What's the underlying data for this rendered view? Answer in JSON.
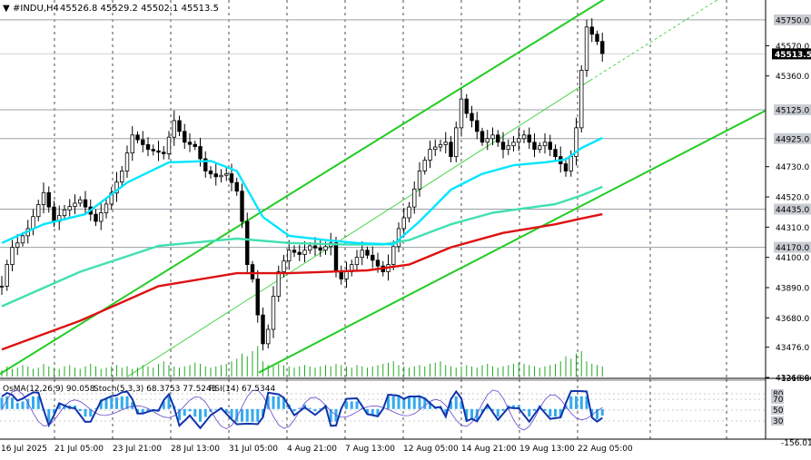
{
  "header": {
    "symbol_label": "#INDU,H4",
    "ohlc": "45526.8 45529.2 45502.1 45513.5"
  },
  "indicator_header": {
    "osma": "OsMA(12,26,9) 90.058",
    "stoch": "Stoch(5,3,3) 68.3753 77.5243",
    "rsi": "RSI(14) 67.5344"
  },
  "price_axis": {
    "ticks": [
      "45570.0",
      "45360.0",
      "44730.0",
      "44520.0",
      "44310.0",
      "44100.0",
      "43890.0",
      "43680.0",
      "43476.0",
      "43266.0"
    ],
    "marked_levels": [
      "45750.0",
      "45125.0",
      "44925.0",
      "44435.0",
      "44170.0"
    ],
    "current_price": "45513.5"
  },
  "indicator_axis": {
    "ticks": [
      "131.886",
      "80",
      "70",
      "50",
      "30",
      "-156.013"
    ]
  },
  "time_axis": {
    "labels": [
      "16 Jul 2025",
      "21 Jul 05:00",
      "23 Jul 21:00",
      "28 Jul 13:00",
      "31 Jul 05:00",
      "4 Aug 21:00",
      "7 Aug 13:00",
      "12 Aug 05:00",
      "14 Aug 21:00",
      "19 Aug 13:00",
      "22 Aug 05:00"
    ]
  },
  "colors": {
    "background": "#ffffff",
    "candles": "#000000",
    "ema_fast": "#00e5ff",
    "ema_mid": "#40e0b0",
    "ema_slow": "#dd1111",
    "channel": "#22cc22",
    "levels": "#9aa0a8",
    "osma_bars": "#33aaee",
    "stoch_main": "#1133aa",
    "rsi_line": "#6644cc",
    "axis_highlight": "#000000"
  },
  "chart_data": {
    "type": "candlestick",
    "symbol": "#INDU",
    "timeframe": "H4",
    "last_close": 45513.5,
    "y_range": [
      43266,
      45850
    ],
    "horizontal_levels": [
      45750,
      45125,
      44925,
      44435,
      44170
    ],
    "price_path": [
      [
        0,
        43900
      ],
      [
        1,
        44050
      ],
      [
        2,
        44170
      ],
      [
        3,
        44200
      ],
      [
        5,
        44300
      ],
      [
        8,
        44550
      ],
      [
        10,
        44350
      ],
      [
        12,
        44430
      ],
      [
        15,
        44500
      ],
      [
        18,
        44350
      ],
      [
        20,
        44470
      ],
      [
        23,
        44700
      ],
      [
        25,
        44950
      ],
      [
        28,
        44850
      ],
      [
        31,
        44820
      ],
      [
        33,
        45050
      ],
      [
        35,
        44900
      ],
      [
        37,
        44870
      ],
      [
        39,
        44700
      ],
      [
        41,
        44660
      ],
      [
        43,
        44680
      ],
      [
        45,
        44560
      ],
      [
        46,
        44350
      ],
      [
        47,
        44050
      ],
      [
        48,
        43950
      ],
      [
        49,
        43700
      ],
      [
        50,
        43500
      ],
      [
        51,
        43600
      ],
      [
        52,
        43830
      ],
      [
        53,
        44000
      ],
      [
        55,
        44150
      ],
      [
        57,
        44120
      ],
      [
        59,
        44180
      ],
      [
        61,
        44150
      ],
      [
        63,
        44200
      ],
      [
        64,
        44000
      ],
      [
        65,
        43950
      ],
      [
        67,
        44050
      ],
      [
        69,
        44150
      ],
      [
        71,
        44080
      ],
      [
        73,
        44000
      ],
      [
        74,
        44050
      ],
      [
        76,
        44300
      ],
      [
        78,
        44450
      ],
      [
        80,
        44700
      ],
      [
        82,
        44850
      ],
      [
        85,
        44900
      ],
      [
        86,
        44800
      ],
      [
        87,
        45000
      ],
      [
        88,
        45200
      ],
      [
        89,
        45100
      ],
      [
        90,
        45050
      ],
      [
        92,
        44900
      ],
      [
        94,
        44950
      ],
      [
        96,
        44850
      ],
      [
        98,
        44900
      ],
      [
        100,
        44950
      ],
      [
        102,
        44850
      ],
      [
        104,
        44900
      ],
      [
        106,
        44800
      ],
      [
        108,
        44700
      ],
      [
        109,
        44800
      ],
      [
        110,
        45000
      ],
      [
        111,
        45400
      ],
      [
        112,
        45700
      ],
      [
        113,
        45650
      ],
      [
        114,
        45600
      ],
      [
        115,
        45513
      ]
    ],
    "ema_fast": [
      [
        0,
        44200
      ],
      [
        8,
        44330
      ],
      [
        16,
        44400
      ],
      [
        24,
        44620
      ],
      [
        32,
        44760
      ],
      [
        40,
        44770
      ],
      [
        45,
        44700
      ],
      [
        50,
        44380
      ],
      [
        55,
        44250
      ],
      [
        62,
        44220
      ],
      [
        68,
        44200
      ],
      [
        75,
        44190
      ],
      [
        80,
        44350
      ],
      [
        86,
        44570
      ],
      [
        92,
        44680
      ],
      [
        98,
        44740
      ],
      [
        104,
        44760
      ],
      [
        108,
        44780
      ],
      [
        111,
        44860
      ],
      [
        115,
        44930
      ]
    ],
    "ema_mid": [
      [
        0,
        43760
      ],
      [
        15,
        44000
      ],
      [
        30,
        44180
      ],
      [
        45,
        44230
      ],
      [
        55,
        44200
      ],
      [
        65,
        44190
      ],
      [
        73,
        44190
      ],
      [
        78,
        44220
      ],
      [
        86,
        44330
      ],
      [
        94,
        44410
      ],
      [
        100,
        44440
      ],
      [
        106,
        44470
      ],
      [
        111,
        44530
      ],
      [
        115,
        44590
      ]
    ],
    "ema_slow": [
      [
        0,
        43460
      ],
      [
        15,
        43660
      ],
      [
        30,
        43900
      ],
      [
        45,
        43990
      ],
      [
        55,
        43990
      ],
      [
        70,
        44010
      ],
      [
        78,
        44050
      ],
      [
        86,
        44170
      ],
      [
        96,
        44270
      ],
      [
        106,
        44330
      ],
      [
        111,
        44370
      ],
      [
        115,
        44400
      ]
    ],
    "volume": [
      5,
      8,
      6,
      7,
      9,
      8,
      6,
      7,
      10,
      8,
      7,
      6,
      8,
      9,
      7,
      6,
      8,
      10,
      8,
      6,
      7,
      8,
      9,
      7,
      8,
      6,
      7,
      9,
      8,
      7,
      10,
      12,
      9,
      8,
      7,
      8,
      9,
      11,
      10,
      8,
      7,
      8,
      9,
      10,
      12,
      14,
      18,
      16,
      20,
      24,
      12,
      9,
      8,
      10,
      9,
      8,
      7,
      8,
      9,
      8,
      7,
      8,
      9,
      8,
      10,
      9,
      8,
      7,
      9,
      8,
      7,
      8,
      9,
      10,
      11,
      12,
      9,
      8,
      7,
      8,
      9,
      8,
      10,
      11,
      12,
      9,
      8,
      7,
      8,
      9,
      8,
      7,
      9,
      10,
      8,
      7,
      8,
      9,
      10,
      11,
      10,
      9,
      8,
      7,
      8,
      9,
      10,
      12,
      16,
      14,
      18,
      20,
      12,
      10,
      9,
      8
    ],
    "indicators": {
      "osma_last": 90.058,
      "stoch_main_last": 68.3753,
      "stoch_signal_last": 77.5243,
      "rsi_last": 67.5344,
      "levels": [
        80,
        70,
        50,
        30
      ],
      "range": [
        -156.013,
        131.886
      ]
    }
  }
}
